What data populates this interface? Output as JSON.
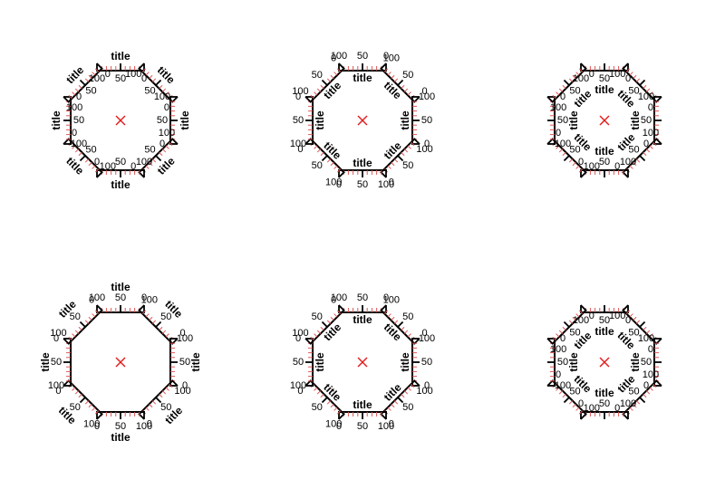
{
  "axis": {
    "title": "title",
    "ticks": [
      "0",
      "50",
      "100"
    ],
    "minor_count": 10
  },
  "colors": {
    "spine": "#000000",
    "major_tick": "#000000",
    "minor_tick": "#e05555",
    "center_marker": "#e02020"
  },
  "center_marker_icon": "cross-icon",
  "panels": [
    {
      "title_side": "outer",
      "label_side": "inner"
    },
    {
      "title_side": "inner",
      "label_side": "outer"
    },
    {
      "title_side": "inner",
      "label_side": "inner"
    },
    {
      "title_side": "outer",
      "label_side": "outer"
    },
    {
      "title_side": "inner",
      "label_side": "outer"
    },
    {
      "title_side": "inner",
      "label_side": "inner"
    }
  ]
}
